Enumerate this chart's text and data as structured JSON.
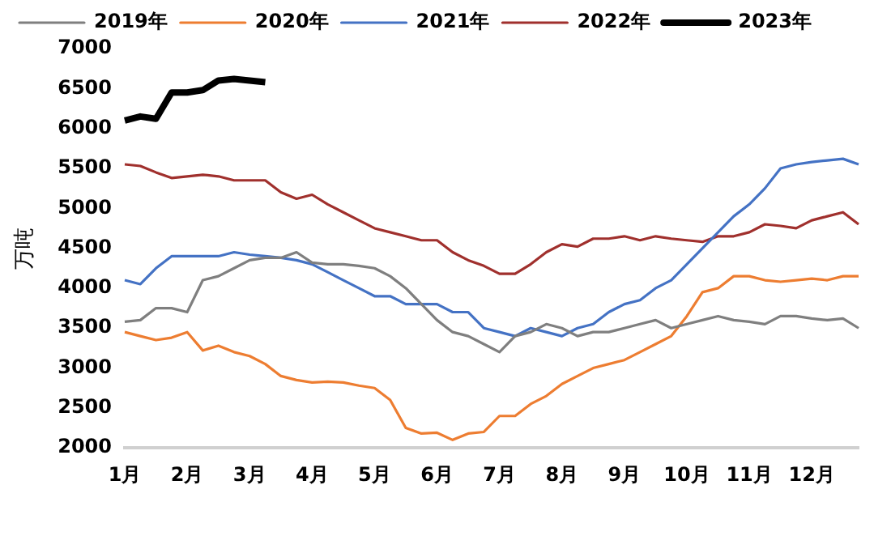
{
  "chart_data": {
    "type": "line",
    "ylabel": "万吨",
    "categories": [
      "1月",
      null,
      null,
      null,
      "2月",
      null,
      null,
      null,
      "3月",
      null,
      null,
      null,
      "4月",
      null,
      null,
      null,
      "5月",
      null,
      null,
      null,
      "6月",
      null,
      null,
      null,
      "7月",
      null,
      null,
      null,
      "8月",
      null,
      null,
      null,
      "9月",
      null,
      null,
      null,
      "10月",
      null,
      null,
      null,
      "11月",
      null,
      null,
      null,
      "12月",
      null,
      null,
      null
    ],
    "series": [
      {
        "name": "2019年",
        "color": "#7f7f7f",
        "values": [
          3580,
          3600,
          3750,
          3750,
          3700,
          4100,
          4150,
          4250,
          4350,
          4380,
          4380,
          4450,
          4320,
          4300,
          4300,
          4280,
          4250,
          4150,
          4000,
          3800,
          3600,
          3450,
          3400,
          3300,
          3200,
          3400,
          3450,
          3550,
          3500,
          3400,
          3450,
          3450,
          3500,
          3550,
          3600,
          3500,
          3550,
          3600,
          3650,
          3600,
          3580,
          3550,
          3650,
          3650,
          3620,
          3600,
          3620,
          3500
        ]
      },
      {
        "name": "2020年",
        "color": "#ed7d31",
        "values": [
          3450,
          3400,
          3350,
          3380,
          3450,
          3220,
          3280,
          3200,
          3150,
          3050,
          2900,
          2850,
          2820,
          2830,
          2820,
          2780,
          2750,
          2600,
          2250,
          2180,
          2190,
          2100,
          2180,
          2200,
          2400,
          2400,
          2550,
          2650,
          2800,
          2900,
          3000,
          3050,
          3100,
          3200,
          3300,
          3400,
          3650,
          3950,
          4000,
          4150,
          4150,
          4100,
          4080,
          4100,
          4120,
          4100,
          4150,
          4150
        ]
      },
      {
        "name": "2021年",
        "color": "#4472c4",
        "values": [
          4100,
          4050,
          4250,
          4400,
          4400,
          4400,
          4400,
          4450,
          4420,
          4400,
          4380,
          4350,
          4300,
          4200,
          4100,
          4000,
          3900,
          3900,
          3800,
          3800,
          3800,
          3700,
          3700,
          3500,
          3450,
          3400,
          3500,
          3450,
          3400,
          3500,
          3550,
          3700,
          3800,
          3850,
          4000,
          4100,
          4300,
          4500,
          4700,
          4900,
          5050,
          5250,
          5500,
          5550,
          5580,
          5600,
          5620,
          5550
        ]
      },
      {
        "name": "2022年",
        "color": "#a0302d",
        "values": [
          5550,
          5530,
          5450,
          5380,
          5400,
          5420,
          5400,
          5350,
          5350,
          5350,
          5200,
          5120,
          5170,
          5050,
          4950,
          4850,
          4750,
          4700,
          4650,
          4600,
          4600,
          4450,
          4350,
          4280,
          4180,
          4180,
          4300,
          4450,
          4550,
          4520,
          4620,
          4620,
          4650,
          4600,
          4650,
          4620,
          4600,
          4580,
          4650,
          4650,
          4700,
          4800,
          4780,
          4750,
          4850,
          4900,
          4950,
          4800
        ]
      },
      {
        "name": "2023年",
        "color": "#000000",
        "values": [
          6100,
          6150,
          6120,
          6450,
          6450,
          6480,
          6600,
          6620,
          6600,
          6580,
          null,
          null,
          null,
          null,
          null,
          null,
          null,
          null,
          null,
          null,
          null,
          null,
          null,
          null,
          null,
          null,
          null,
          null,
          null,
          null,
          null,
          null,
          null,
          null,
          null,
          null,
          null,
          null,
          null,
          null,
          null,
          null,
          null,
          null,
          null,
          null,
          null,
          null
        ]
      }
    ],
    "ylim": [
      2000,
      7000
    ],
    "yticks": [
      2000,
      2500,
      3000,
      3500,
      4000,
      4500,
      5000,
      5500,
      6000,
      6500,
      7000
    ],
    "grid": false,
    "legend": "top",
    "marker": "none",
    "line_style": "solid"
  }
}
